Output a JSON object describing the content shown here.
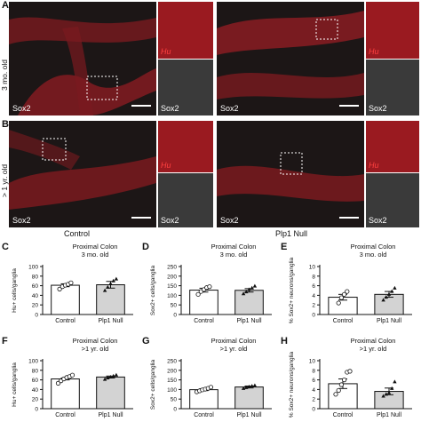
{
  "panels": {
    "A": {
      "label": "A",
      "row_label": "3 mo. old",
      "marker": "Sox2",
      "inset_top": "Hu",
      "inset_bottom": "Sox2"
    },
    "B": {
      "label": "B",
      "row_label": "> 1 yr. old",
      "marker": "Sox2",
      "inset_top": "Hu",
      "inset_bottom": "Sox2"
    }
  },
  "conditions": {
    "control": "Control",
    "null": "Plp1 Null"
  },
  "colors": {
    "bar_control": "#ffffff",
    "bar_null": "#d3d3d3",
    "stroke": "#111111",
    "hu_red": "#c0202a"
  },
  "chart_data": [
    {
      "id": "C",
      "type": "bar",
      "title": "Proximal Colon",
      "subtitle": "3 mo. old",
      "ylabel": "Hu+ cells/ganglia",
      "categories": [
        "Control",
        "Plp1 Null"
      ],
      "values": [
        61,
        62
      ],
      "errors": [
        3,
        7
      ],
      "ylim": [
        0,
        100
      ],
      "yticks": [
        0,
        20,
        40,
        60,
        80,
        100
      ],
      "points": [
        [
          53,
          58,
          61,
          63,
          66
        ],
        [
          50,
          57,
          64,
          70,
          74
        ]
      ]
    },
    {
      "id": "D",
      "type": "bar",
      "title": "Proximal Colon",
      "subtitle": "3 mo. old",
      "ylabel": "Sox2+ cells/ganglia",
      "categories": [
        "Control",
        "Plp1 Null"
      ],
      "values": [
        127,
        126
      ],
      "errors": [
        10,
        9
      ],
      "ylim": [
        0,
        250
      ],
      "yticks": [
        0,
        50,
        100,
        150,
        200,
        250
      ],
      "points": [
        [
          105,
          120,
          130,
          140,
          145
        ],
        [
          108,
          118,
          130,
          138,
          148
        ]
      ]
    },
    {
      "id": "E",
      "type": "bar",
      "title": "Proximal Colon",
      "subtitle": "3 mo. old",
      "ylabel": "% Sox2+ neurons/ganglia",
      "categories": [
        "Control",
        "Plp1 Null"
      ],
      "values": [
        3.6,
        4.2
      ],
      "errors": [
        0.6,
        0.6
      ],
      "ylim": [
        0,
        10
      ],
      "yticks": [
        0,
        2,
        4,
        6,
        8,
        10
      ],
      "points": [
        [
          2.4,
          3.5,
          4.2,
          4.8
        ],
        [
          3.0,
          3.6,
          4.2,
          4.8,
          5.5
        ]
      ]
    },
    {
      "id": "F",
      "type": "bar",
      "title": "Proximal Colon",
      "subtitle": ">1 yr. old",
      "ylabel": "Hu+ cells/ganglia",
      "categories": [
        "Control",
        "Plp1 Null"
      ],
      "values": [
        62,
        66
      ],
      "errors": [
        2,
        2
      ],
      "ylim": [
        0,
        100
      ],
      "yticks": [
        0,
        20,
        40,
        60,
        80,
        100
      ],
      "points": [
        [
          53,
          58,
          62,
          65,
          67,
          70
        ],
        [
          61,
          64,
          66,
          68,
          70
        ]
      ]
    },
    {
      "id": "G",
      "type": "bar",
      "title": "Proximal Colon",
      "subtitle": ">1 yr. old",
      "ylabel": "Sox2+ cells/ganglia",
      "categories": [
        "Control",
        "Plp1 Null"
      ],
      "values": [
        99,
        113
      ],
      "errors": [
        5,
        5
      ],
      "ylim": [
        0,
        250
      ],
      "yticks": [
        0,
        50,
        100,
        150,
        200,
        250
      ],
      "points": [
        [
          88,
          93,
          98,
          102,
          106,
          112
        ],
        [
          105,
          110,
          114,
          118,
          121
        ]
      ]
    },
    {
      "id": "H",
      "type": "bar",
      "title": "Proximal Colon",
      "subtitle": ">1 yr. old",
      "ylabel": "% Sox2+ neurons/ganglia",
      "categories": [
        "Control",
        "Plp1 Null"
      ],
      "values": [
        5.2,
        3.6
      ],
      "errors": [
        1.0,
        0.7
      ],
      "ylim": [
        0,
        10
      ],
      "yticks": [
        0,
        2,
        4,
        6,
        8,
        10
      ],
      "points": [
        [
          3.0,
          3.8,
          5.0,
          6.0,
          7.6,
          7.8
        ],
        [
          2.6,
          3.0,
          3.3,
          4.2,
          5.6
        ]
      ]
    }
  ]
}
